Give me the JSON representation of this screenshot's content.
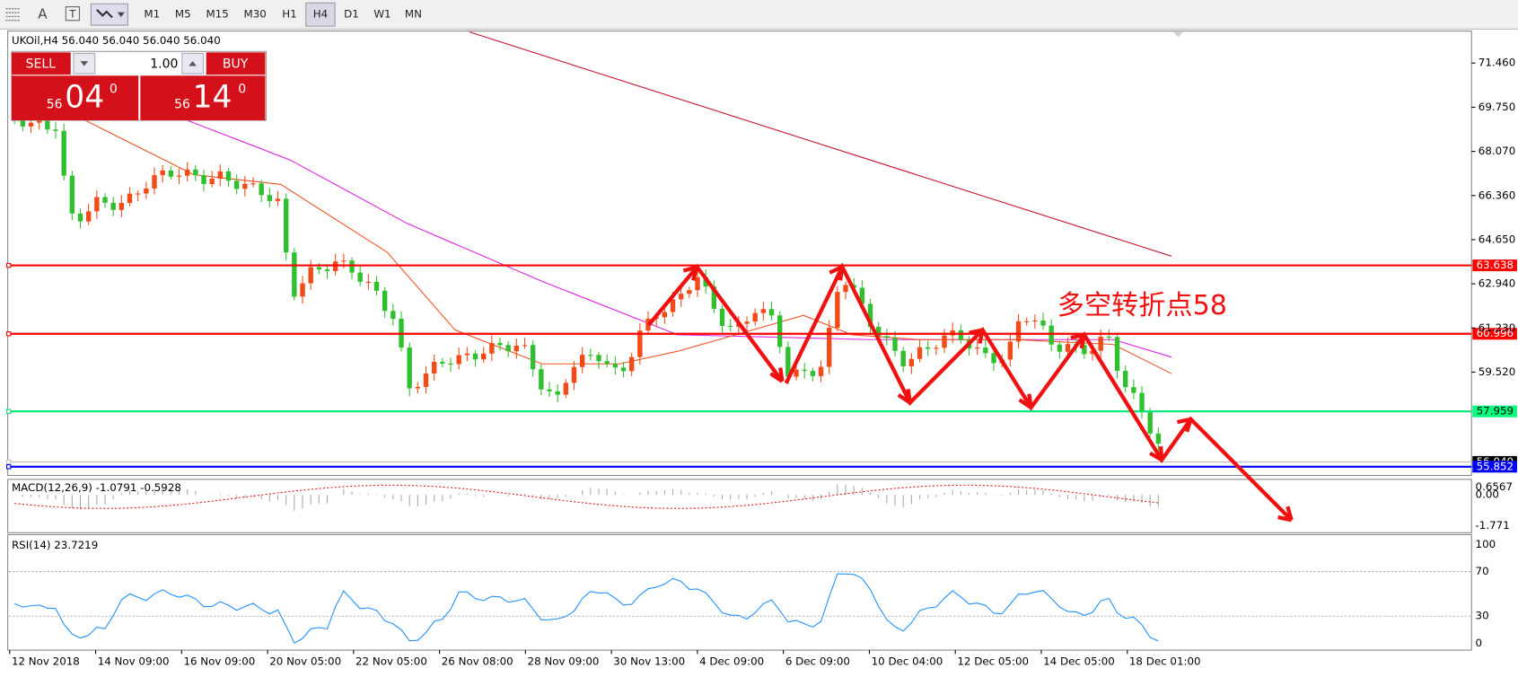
{
  "toolbar": {
    "font_icon": "A",
    "timeframes": [
      "M1",
      "M5",
      "M15",
      "M30",
      "H1",
      "H4",
      "D1",
      "W1",
      "MN"
    ],
    "active": "H4"
  },
  "symbol_info": "UKOil,H4  56.040 56.040 56.040 56.040",
  "trade_panel": {
    "sell": "SELL",
    "buy": "BUY",
    "lots": "1.00",
    "sell_big": "56",
    "sell_mid": "04",
    "sell_sup": "0",
    "buy_big": "56",
    "buy_mid": "14",
    "buy_sup": "0"
  },
  "price_axis": [
    "71.460",
    "69.750",
    "68.070",
    "66.360",
    "64.650",
    "62.940",
    "61.230",
    "59.520"
  ],
  "levels": [
    {
      "label": "63.638",
      "kind": "resistance"
    },
    {
      "label": "60.996",
      "kind": "resistance"
    },
    {
      "label": "57.959",
      "kind": "support"
    },
    {
      "label": "56.040",
      "kind": "bid"
    },
    {
      "label": "55.852",
      "kind": "low"
    }
  ],
  "annotation": "多空转折点58",
  "macd": {
    "label": "MACD(12,26,9) -1.0791 -0.5928",
    "axis": [
      "0.6567",
      "0.00",
      "-1.771"
    ]
  },
  "rsi": {
    "label": "RSI(14) 23.7219",
    "axis": [
      "100",
      "70",
      "30",
      "0"
    ]
  },
  "dates": [
    "12 Nov 2018",
    "14 Nov 09:00",
    "16 Nov 09:00",
    "20 Nov 05:00",
    "22 Nov 05:00",
    "26 Nov 08:00",
    "28 Nov 09:00",
    "30 Nov 13:00",
    "4 Dec 09:00",
    "6 Dec 09:00",
    "10 Dec 04:00",
    "12 Dec 05:00",
    "14 Dec 05:00",
    "18 Dec 01:00"
  ]
}
